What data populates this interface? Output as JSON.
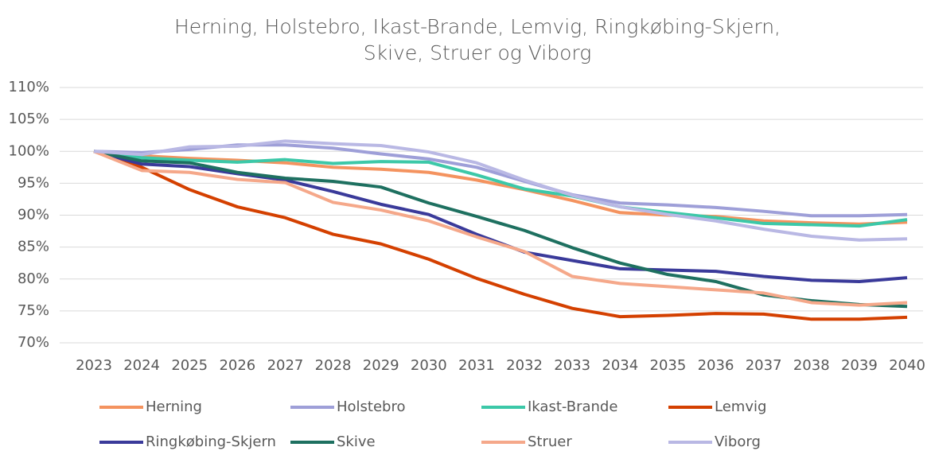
{
  "chart_data": {
    "type": "line",
    "title": [
      "Herning, Holstebro, Ikast-Brande, Lemvig, Ringkøbing-Skjern,",
      "Skive, Struer og Viborg"
    ],
    "categories": [
      "2023",
      "2024",
      "2025",
      "2026",
      "2027",
      "2028",
      "2029",
      "2030",
      "2031",
      "2032",
      "2033",
      "2034",
      "2035",
      "2036",
      "2037",
      "2038",
      "2039",
      "2040"
    ],
    "series": [
      {
        "name": "Herning",
        "color": "#f4935f",
        "values": [
          100,
          99.3,
          98.9,
          98.6,
          98.2,
          97.5,
          97.2,
          96.7,
          95.5,
          94,
          92.3,
          90.4,
          90,
          89.8,
          89.1,
          88.8,
          88.6,
          88.9
        ]
      },
      {
        "name": "Holstebro",
        "color": "#9e9fd8",
        "values": [
          100,
          99.8,
          100.3,
          101,
          101,
          100.5,
          99.6,
          98.8,
          97.5,
          95.3,
          93.2,
          91.9,
          91.6,
          91.2,
          90.6,
          89.9,
          89.9,
          90.1
        ]
      },
      {
        "name": "Ikast-Brande",
        "color": "#3cc8a8",
        "values": [
          100,
          99,
          98.6,
          98.3,
          98.7,
          98.1,
          98.4,
          98.3,
          96.3,
          94.1,
          93,
          91.3,
          90.4,
          89.6,
          88.7,
          88.5,
          88.3,
          89.3
        ]
      },
      {
        "name": "Lemvig",
        "color": "#d44000",
        "values": [
          100,
          97.5,
          94,
          91.3,
          89.6,
          87,
          85.5,
          83.1,
          80.1,
          77.6,
          75.4,
          74.1,
          74.3,
          74.6,
          74.5,
          73.7,
          73.7,
          74
        ]
      },
      {
        "name": "Ringkøbing-Skjern",
        "color": "#3a3a9a",
        "values": [
          100,
          98,
          97.6,
          96.5,
          95.5,
          93.7,
          91.7,
          90.1,
          87,
          84.2,
          82.9,
          81.6,
          81.4,
          81.2,
          80.4,
          79.8,
          79.6,
          80.2
        ]
      },
      {
        "name": "Skive",
        "color": "#1e7060",
        "values": [
          100,
          98.5,
          98.2,
          96.7,
          95.8,
          95.3,
          94.4,
          91.9,
          89.8,
          87.6,
          84.9,
          82.5,
          80.7,
          79.6,
          77.5,
          76.6,
          76,
          75.7
        ]
      },
      {
        "name": "Struer",
        "color": "#f5a88a",
        "values": [
          100,
          97,
          96.7,
          95.6,
          95.1,
          92,
          90.8,
          89.1,
          86.6,
          84.3,
          80.4,
          79.3,
          78.8,
          78.3,
          77.8,
          76.3,
          75.9,
          76.3
        ]
      },
      {
        "name": "Viborg",
        "color": "#b9b8e4",
        "values": [
          100,
          99.5,
          100.7,
          100.8,
          101.6,
          101.2,
          100.9,
          99.9,
          98.2,
          95.5,
          93.1,
          91.3,
          90.1,
          89.1,
          87.8,
          86.7,
          86.1,
          86.3
        ]
      }
    ],
    "ylim": [
      70,
      110
    ],
    "yticks": [
      {
        "value": 70,
        "label": "70%"
      },
      {
        "value": 75,
        "label": "75%"
      },
      {
        "value": 80,
        "label": "80%"
      },
      {
        "value": 85,
        "label": "85%"
      },
      {
        "value": 90,
        "label": "90%"
      },
      {
        "value": 95,
        "label": "95%"
      },
      {
        "value": 100,
        "label": "100%"
      },
      {
        "value": 105,
        "label": "105%"
      },
      {
        "value": 110,
        "label": "110%"
      }
    ],
    "grid": true,
    "legend": "bottom"
  }
}
